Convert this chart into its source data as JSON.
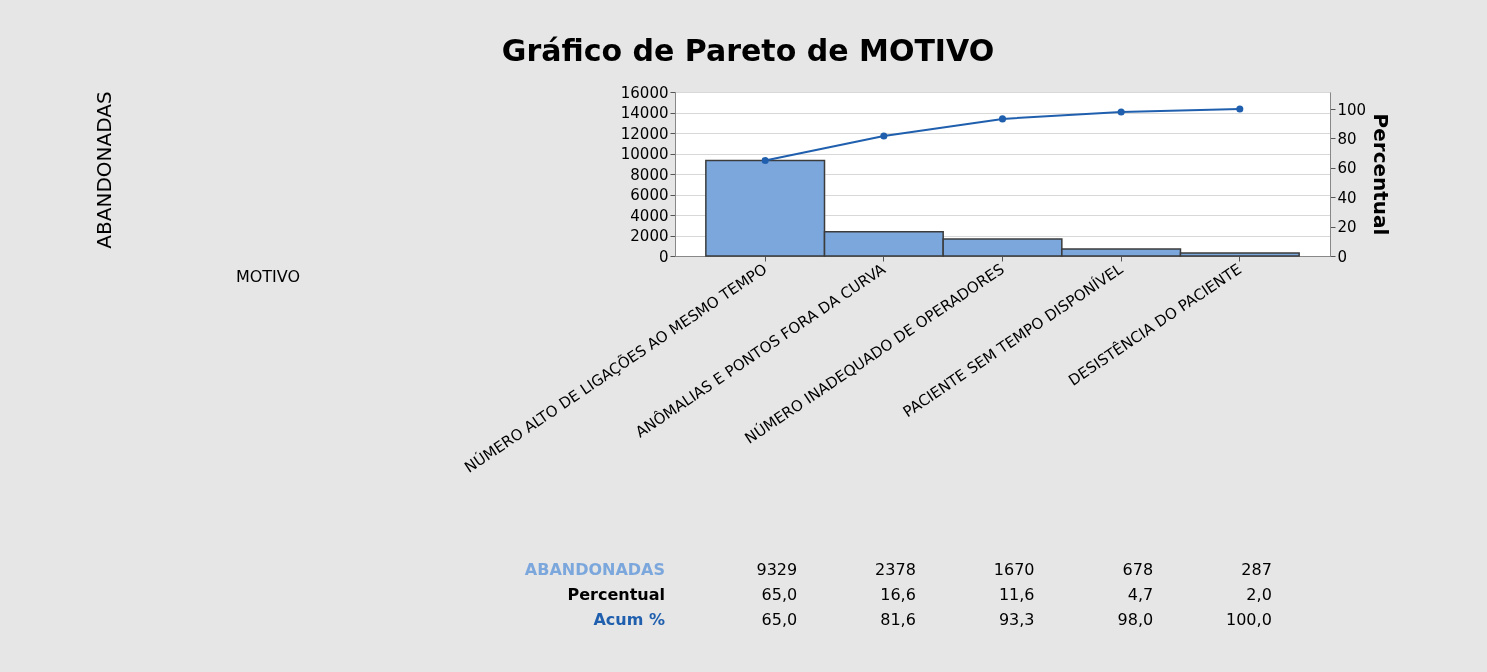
{
  "chart_data": {
    "type": "bar",
    "title": "Gráfico de Pareto de MOTIVO",
    "y2label": "Percentual",
    "categories": [
      "NÚMERO ALTO DE LIGAÇÕES AO MESMO TEMPO",
      "ANÔMALIAS E PONTOS FORA DA CURVA",
      "NÚMERO INADEQUADO DE OPERADORES",
      "PACIENTE SEM TEMPO DISPONÍVEL",
      "DESISTÊNCIA DO PACIENTE"
    ],
    "series": [
      {
        "name": "ABANDONADAS",
        "color": "#7ba7dc",
        "values": [
          9329,
          2378,
          1670,
          678,
          287
        ]
      },
      {
        "name": "Acum %",
        "type": "line",
        "axis": "y2",
        "color": "#1f5fad",
        "marker": "circle",
        "values": [
          65.0,
          81.6,
          93.3,
          98.0,
          100.0
        ],
        "value_labels": [
          "65,0",
          "81,6",
          "93,3",
          "98,0",
          "100,0"
        ]
      }
    ],
    "data_labels": true,
    "annotations": [
      "ABANDONADAS",
      "MOTIVO",
      "Percentual",
      "65,0",
      "16,6",
      "11,6",
      "4,7",
      "2,0"
    ],
    "ylim": [
      0,
      16000
    ],
    "yticks": [
      0,
      2000,
      4000,
      6000,
      8000,
      10000,
      12000,
      14000,
      16000
    ],
    "y2lim": [
      0,
      111.6
    ],
    "y2ticks": [
      0,
      20,
      40,
      60,
      80,
      100
    ],
    "grid": "y",
    "legend": false
  }
}
